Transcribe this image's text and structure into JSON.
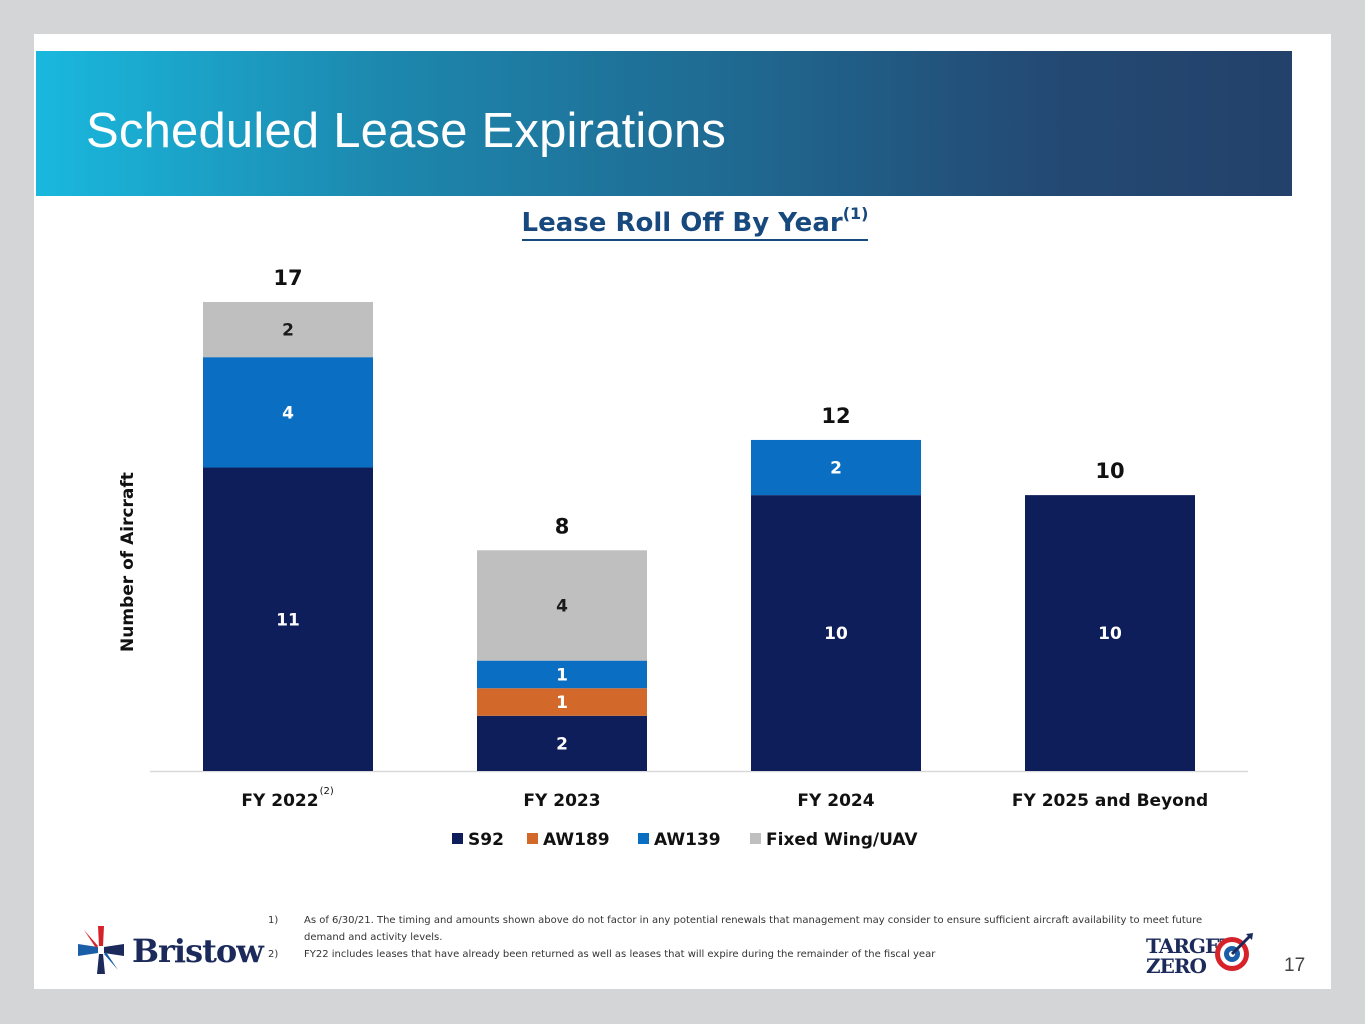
{
  "slide": {
    "title": "Scheduled Lease Expirations",
    "page_number": "17"
  },
  "chart_data": {
    "type": "bar",
    "stacked": true,
    "title": "Lease Roll Off By Year",
    "title_superscript": "(1)",
    "ylabel": "Number of Aircraft",
    "xlabel": "",
    "categories": [
      "FY 2022",
      "FY 2023",
      "FY 2024",
      "FY 2025 and Beyond"
    ],
    "category_superscripts": [
      "(2)",
      "",
      "",
      ""
    ],
    "series": [
      {
        "name": "S92",
        "color": "#0e1e5b",
        "values": [
          11,
          2,
          10,
          10
        ]
      },
      {
        "name": "AW189",
        "color": "#d2692a",
        "values": [
          0,
          1,
          0,
          0
        ]
      },
      {
        "name": "AW139",
        "color": "#0a6fc2",
        "values": [
          4,
          1,
          2,
          0
        ]
      },
      {
        "name": "Fixed Wing/UAV",
        "color": "#bfbfbf",
        "values": [
          2,
          4,
          0,
          0
        ]
      }
    ],
    "totals": [
      17,
      8,
      12,
      10
    ],
    "ylim": [
      0,
      17
    ],
    "grid": false,
    "legend": "bottom"
  },
  "footnotes": [
    {
      "num": "1)",
      "text": "As of 6/30/21. The timing and amounts shown above do not factor in any potential renewals that management may consider to ensure sufficient aircraft availability to meet future demand and activity levels."
    },
    {
      "num": "2)",
      "text": "FY22 includes leases that have already been returned as well as leases that will expire during the remainder of the fiscal year"
    }
  ],
  "logos": {
    "bristow": "Bristow",
    "target_line1": "TARGET",
    "target_line2": "ZERO"
  }
}
